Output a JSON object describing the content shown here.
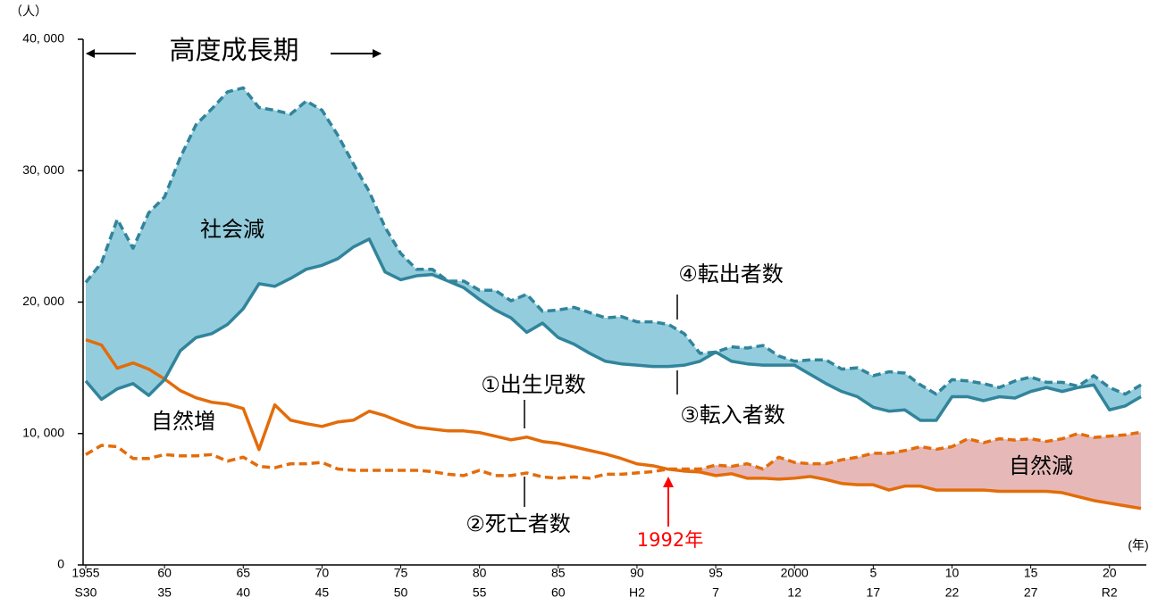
{
  "chart_data": {
    "type": "line",
    "y_unit": "（人）",
    "x_unit": "(年)",
    "x": [
      1955,
      1956,
      1957,
      1958,
      1959,
      1960,
      1961,
      1962,
      1963,
      1964,
      1965,
      1966,
      1967,
      1968,
      1969,
      1970,
      1971,
      1972,
      1973,
      1974,
      1975,
      1976,
      1977,
      1978,
      1979,
      1980,
      1981,
      1982,
      1983,
      1984,
      1985,
      1986,
      1987,
      1988,
      1989,
      1990,
      1991,
      1992,
      1993,
      1994,
      1995,
      1996,
      1997,
      1998,
      1999,
      2000,
      2001,
      2002,
      2003,
      2004,
      2005,
      2006,
      2007,
      2008,
      2009,
      2010,
      2011,
      2012,
      2013,
      2014,
      2015,
      2016,
      2017,
      2018,
      2019,
      2020,
      2021,
      2022
    ],
    "series": [
      {
        "name": "①出生児数",
        "color": "#e36c0a",
        "dashed": false,
        "values": [
          17140,
          16730,
          14970,
          15370,
          14900,
          14150,
          13270,
          12720,
          12380,
          12240,
          11900,
          8780,
          12180,
          11020,
          10750,
          10540,
          10880,
          11020,
          11700,
          11360,
          10880,
          10480,
          10340,
          10200,
          10200,
          10070,
          9800,
          9520,
          9730,
          9390,
          9250,
          8980,
          8710,
          8440,
          8100,
          7690,
          7550,
          7280,
          7140,
          7070,
          6800,
          6940,
          6600,
          6600,
          6530,
          6600,
          6730,
          6500,
          6200,
          6100,
          6100,
          5700,
          6000,
          6000,
          5700,
          5700,
          5700,
          5700,
          5600,
          5600,
          5600,
          5600,
          5500,
          5200,
          4900,
          4700,
          4500,
          4300
        ]
      },
      {
        "name": "②死亡者数",
        "color": "#e36c0a",
        "dashed": true,
        "values": [
          8400,
          9100,
          9000,
          8100,
          8100,
          8400,
          8300,
          8300,
          8400,
          7900,
          8200,
          7500,
          7400,
          7700,
          7700,
          7800,
          7300,
          7200,
          7200,
          7200,
          7200,
          7200,
          7100,
          6900,
          6800,
          7200,
          6800,
          6800,
          7000,
          6700,
          6600,
          6700,
          6600,
          6900,
          6900,
          7000,
          7100,
          7300,
          7300,
          7300,
          7600,
          7500,
          7700,
          7300,
          8200,
          7800,
          7700,
          7700,
          8000,
          8200,
          8500,
          8500,
          8700,
          9000,
          8800,
          9000,
          9600,
          9300,
          9600,
          9500,
          9600,
          9400,
          9600,
          10000,
          9700,
          9800,
          9900,
          10100
        ]
      },
      {
        "name": "③転入者数",
        "color": "#31849b",
        "dashed": false,
        "values": [
          14000,
          12600,
          13400,
          13800,
          12900,
          14100,
          16300,
          17300,
          17600,
          18300,
          19500,
          21400,
          21200,
          21800,
          22500,
          22800,
          23300,
          24200,
          24800,
          22300,
          21700,
          22000,
          22100,
          21600,
          21100,
          20200,
          19400,
          18800,
          17700,
          18400,
          17300,
          16800,
          16100,
          15500,
          15300,
          15200,
          15100,
          15100,
          15200,
          15500,
          16200,
          15500,
          15300,
          15200,
          15200,
          15200,
          14500,
          13800,
          13200,
          12800,
          12000,
          11700,
          11800,
          11000,
          11000,
          12800,
          12800,
          12500,
          12800,
          12700,
          13200,
          13500,
          13200,
          13500,
          13700,
          11800,
          12100,
          12800
        ]
      },
      {
        "name": "④転出者数",
        "color": "#31849b",
        "dashed": true,
        "values": [
          21500,
          23000,
          26300,
          24100,
          26800,
          28000,
          31000,
          33500,
          34700,
          36000,
          36300,
          34800,
          34600,
          34300,
          35300,
          34600,
          32700,
          30500,
          28400,
          25700,
          23700,
          22500,
          22500,
          21600,
          21600,
          20900,
          20900,
          20100,
          20600,
          19300,
          19400,
          19600,
          19200,
          18800,
          18900,
          18500,
          18500,
          18300,
          17600,
          16100,
          16200,
          16600,
          16500,
          16700,
          15900,
          15500,
          15600,
          15600,
          14900,
          15000,
          14400,
          14700,
          14600,
          13700,
          13000,
          14100,
          14000,
          13800,
          13500,
          14000,
          14300,
          13900,
          13900,
          13600,
          14400,
          13500,
          13000,
          13700
        ]
      }
    ],
    "areas": [
      {
        "color": "#93cddd",
        "between": [
          3,
          2
        ]
      },
      {
        "color": "#e6b9b8",
        "between": [
          1,
          0
        ]
      }
    ],
    "xlim": [
      1955,
      2022
    ],
    "ylim": [
      0,
      40000
    ],
    "yticks": [
      0,
      {
        "value": 10000,
        "label": "10, 000"
      },
      {
        "value": 20000,
        "label": "20, 000"
      },
      {
        "value": 30000,
        "label": "30, 000"
      },
      {
        "value": 40000,
        "label": "40, 000"
      }
    ],
    "xticks": [
      1955,
      {
        "value": 1960,
        "label": "60"
      },
      {
        "value": 1965,
        "label": "65"
      },
      {
        "value": 1970,
        "label": "70"
      },
      {
        "value": 1975,
        "label": "75"
      },
      {
        "value": 1980,
        "label": "80"
      },
      {
        "value": 1985,
        "label": "85"
      },
      {
        "value": 1990,
        "label": "90"
      },
      {
        "value": 1995,
        "label": "95"
      },
      2000,
      {
        "value": 2005,
        "label": "5"
      },
      {
        "value": 2010,
        "label": "10"
      },
      {
        "value": 2015,
        "label": "15"
      },
      {
        "value": 2020,
        "label": "20"
      }
    ],
    "xtick_sublabels": [
      "S30",
      "35",
      "40",
      "45",
      "50",
      "55",
      "60",
      "H2",
      "7",
      "12",
      "17",
      "22",
      "27",
      "R2"
    ],
    "annotations": {
      "period": "高度成長期",
      "social_decrease": "社会減",
      "natural_increase": "自然増",
      "natural_decrease": "自然減",
      "turning_year": "1992年"
    }
  }
}
